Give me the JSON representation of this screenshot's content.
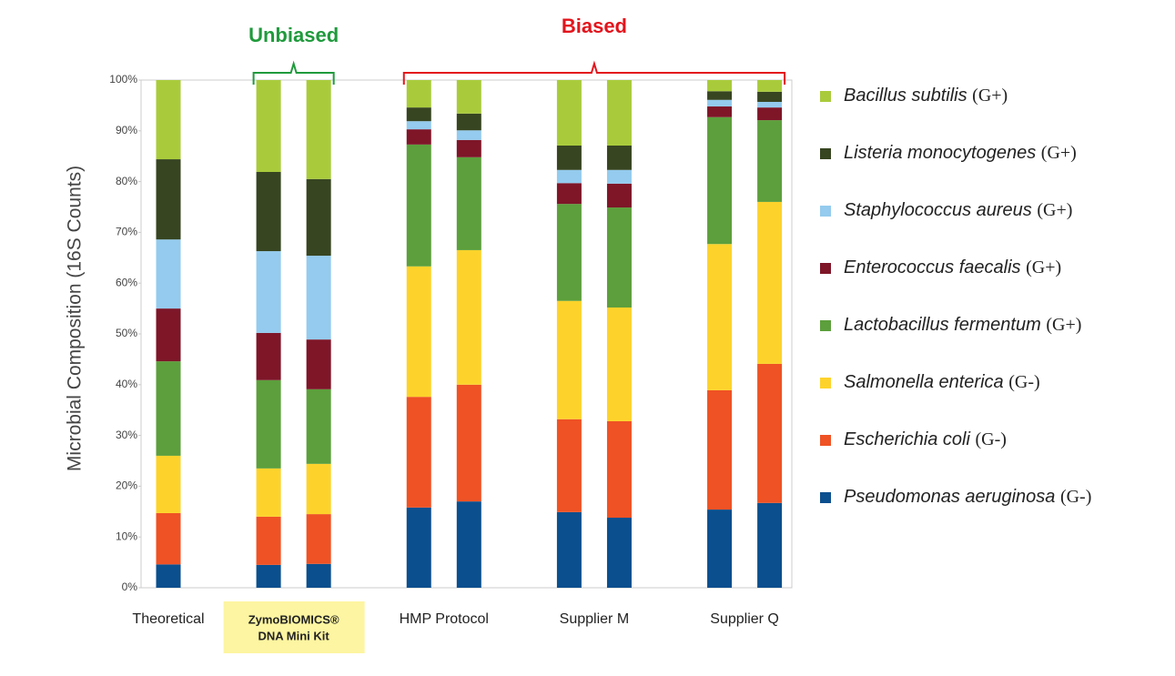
{
  "chart_data": {
    "type": "stacked_bar",
    "ylabel": "Microbial Composition (16S Counts)",
    "ylim": [
      0,
      100
    ],
    "yticks": [
      {
        "value": 0,
        "label": "0%"
      },
      {
        "value": 10,
        "label": "10%"
      },
      {
        "value": 20,
        "label": "20%"
      },
      {
        "value": 30,
        "label": "30%"
      },
      {
        "value": 40,
        "label": "40%"
      },
      {
        "value": 50,
        "label": "50%"
      },
      {
        "value": 60,
        "label": "60%"
      },
      {
        "value": 70,
        "label": "70%"
      },
      {
        "value": 80,
        "label": "80%"
      },
      {
        "value": 90,
        "label": "90%"
      },
      {
        "value": 100,
        "label": "100%"
      }
    ],
    "groups": [
      {
        "label": [
          "Theoretical"
        ],
        "size": 1,
        "highlight": false
      },
      {
        "label": [
          "ZymoBIOMICS®",
          "DNA Mini Kit"
        ],
        "size": 2,
        "highlight": true
      },
      {
        "label": [
          "HMP Protocol"
        ],
        "size": 2,
        "highlight": false
      },
      {
        "label": [
          "Supplier M"
        ],
        "size": 2,
        "highlight": false
      },
      {
        "label": [
          "Supplier Q"
        ],
        "size": 2,
        "highlight": false
      }
    ],
    "annotations": [
      {
        "text": "Unbiased",
        "color": "#1f9a3c",
        "groups": [
          1,
          1
        ]
      },
      {
        "text": "Biased",
        "color": "#e3141c",
        "groups": [
          2,
          4
        ]
      }
    ],
    "series": [
      {
        "name": "Pseudomonas aeruginosa",
        "gram": "(G-)",
        "color": "#0b4f8e",
        "values": [
          4.6,
          4.5,
          4.7,
          15.8,
          17.0,
          14.9,
          13.8,
          15.4,
          16.7
        ]
      },
      {
        "name": "Escherichia coli",
        "gram": "(G-)",
        "color": "#ef5224",
        "values": [
          10.1,
          9.5,
          9.8,
          21.8,
          23.0,
          18.3,
          19.0,
          23.5,
          27.4
        ]
      },
      {
        "name": "Salmonella enterica",
        "gram": "(G-)",
        "color": "#fdd32b",
        "values": [
          11.3,
          9.5,
          9.9,
          25.7,
          26.5,
          23.3,
          22.4,
          28.8,
          31.9
        ]
      },
      {
        "name": "Lactobacillus fermentum",
        "gram": "(G+)",
        "color": "#5c9f3c",
        "values": [
          18.6,
          17.4,
          14.7,
          24.0,
          18.3,
          19.1,
          19.7,
          25.0,
          16.1
        ]
      },
      {
        "name": "Enterococcus faecalis",
        "gram": "(G+)",
        "color": "#7e1628",
        "values": [
          10.4,
          9.3,
          9.8,
          3.0,
          3.4,
          4.1,
          4.7,
          2.1,
          2.5
        ]
      },
      {
        "name": "Staphylococcus aureus",
        "gram": "(G+)",
        "color": "#94cbee",
        "values": [
          13.6,
          16.1,
          16.5,
          1.6,
          1.9,
          2.6,
          2.7,
          1.3,
          1.1
        ]
      },
      {
        "name": "Listeria monocytogenes",
        "gram": "(G+)",
        "color": "#374521",
        "values": [
          15.8,
          15.6,
          15.1,
          2.7,
          3.3,
          4.8,
          4.8,
          1.7,
          2.0
        ]
      },
      {
        "name": "Bacillus subtilis",
        "gram": "(G+)",
        "color": "#a9cb3b",
        "values": [
          15.6,
          18.1,
          19.5,
          5.4,
          6.6,
          12.9,
          12.9,
          2.2,
          2.3
        ]
      }
    ],
    "legend": "right"
  }
}
